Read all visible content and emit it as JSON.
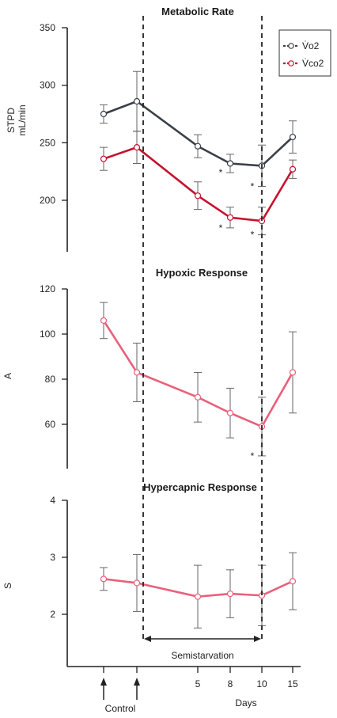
{
  "chart_data": [
    {
      "type": "line",
      "title": "Metabolic Rate",
      "ylabel": [
        "STPD",
        "mL/min"
      ],
      "ylim": [
        160,
        350
      ],
      "yticks": [
        200,
        250,
        300,
        350
      ],
      "x": [
        1,
        2,
        5,
        8,
        10,
        15
      ],
      "series": [
        {
          "name": "V̇o2",
          "color": "#3a3f47",
          "values": [
            275,
            286,
            247,
            232,
            230,
            255
          ],
          "errors": [
            8,
            26,
            10,
            8,
            18,
            14
          ]
        },
        {
          "name": "V̇co2",
          "color": "#c8102e",
          "values": [
            236,
            246,
            204,
            185,
            182,
            227
          ],
          "errors": [
            10,
            14,
            12,
            9,
            12,
            8
          ]
        }
      ],
      "annotations": [
        {
          "x": 8,
          "text": "*",
          "series": 0
        },
        {
          "x": 10,
          "text": "*",
          "series": 0
        },
        {
          "x": 8,
          "text": "*",
          "series": 1
        },
        {
          "x": 10,
          "text": "*",
          "series": 1
        }
      ],
      "legend": "top-right"
    },
    {
      "type": "line",
      "title": "Hypoxic Response",
      "ylabel": [
        "A"
      ],
      "ylim": [
        40,
        120
      ],
      "yticks": [
        60,
        80,
        100,
        120
      ],
      "x": [
        1,
        2,
        5,
        8,
        10,
        15
      ],
      "series": [
        {
          "color": "#e9607a",
          "values": [
            106,
            83,
            72,
            65,
            59,
            83
          ],
          "errors": [
            8,
            13,
            11,
            11,
            13,
            18
          ]
        }
      ],
      "annotations": [
        {
          "x": 10,
          "text": "*",
          "series": 0
        }
      ]
    },
    {
      "type": "line",
      "title": "Hypercapnic Response",
      "ylabel": [
        "S"
      ],
      "ylim": [
        1.5,
        4
      ],
      "yticks": [
        2,
        3,
        4
      ],
      "x": [
        1,
        2,
        5,
        8,
        10,
        15
      ],
      "series": [
        {
          "color": "#e9607a",
          "values": [
            2.62,
            2.55,
            2.31,
            2.36,
            2.33,
            2.58
          ],
          "errors": [
            0.2,
            0.5,
            0.55,
            0.42,
            0.53,
            0.5
          ]
        }
      ]
    }
  ],
  "x_axis": {
    "tick_positions": [
      1,
      2,
      5,
      8,
      10,
      15
    ],
    "tick_labels": [
      "",
      "",
      "5",
      "8",
      "10",
      "15"
    ],
    "arrows_at": [
      1,
      2
    ],
    "label": "Days",
    "control_label": "Control"
  },
  "semistarvation": {
    "label": "Semistarvation",
    "start": 2.25,
    "end": 10
  }
}
